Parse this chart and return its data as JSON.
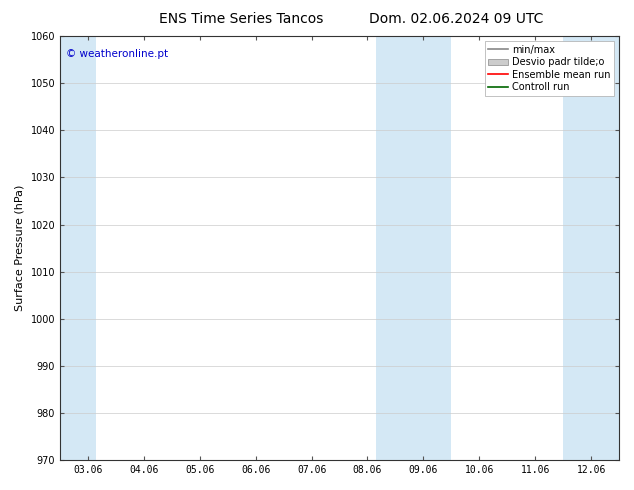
{
  "title_left": "ENS Time Series Tancos",
  "title_right": "Dom. 02.06.2024 09 UTC",
  "ylabel": "Surface Pressure (hPa)",
  "ylim": [
    970,
    1060
  ],
  "yticks": [
    970,
    980,
    990,
    1000,
    1010,
    1020,
    1030,
    1040,
    1050,
    1060
  ],
  "x_labels": [
    "03.06",
    "04.06",
    "05.06",
    "06.06",
    "07.06",
    "08.06",
    "09.06",
    "10.06",
    "11.06",
    "12.06"
  ],
  "x_positions": [
    0,
    1,
    2,
    3,
    4,
    5,
    6,
    7,
    8,
    9
  ],
  "x_min": -0.5,
  "x_max": 9.5,
  "shade_bands": [
    {
      "x_start": -0.5,
      "x_end": 0.15
    },
    {
      "x_start": 5.15,
      "x_end": 5.5
    },
    {
      "x_start": 5.5,
      "x_end": 6.5
    },
    {
      "x_start": 8.5,
      "x_end": 8.85
    },
    {
      "x_start": 8.85,
      "x_end": 9.5
    }
  ],
  "shade_color": "#d4e8f5",
  "plot_bg_color": "#ffffff",
  "watermark": "© weatheronline.pt",
  "watermark_color": "#0000cc",
  "bg_color": "#ffffff",
  "grid_color": "#cccccc",
  "tick_color": "#000000",
  "legend_items": [
    {
      "label": "min/max",
      "type": "line",
      "color": "#888888"
    },
    {
      "label": "Desvio padr tilde;o",
      "type": "patch",
      "color": "#cccccc"
    },
    {
      "label": "Ensemble mean run",
      "type": "line",
      "color": "#ff0000"
    },
    {
      "label": "Controll run",
      "type": "line",
      "color": "#006600"
    }
  ],
  "title_fontsize": 10,
  "tick_fontsize": 7,
  "ylabel_fontsize": 8,
  "legend_fontsize": 7
}
